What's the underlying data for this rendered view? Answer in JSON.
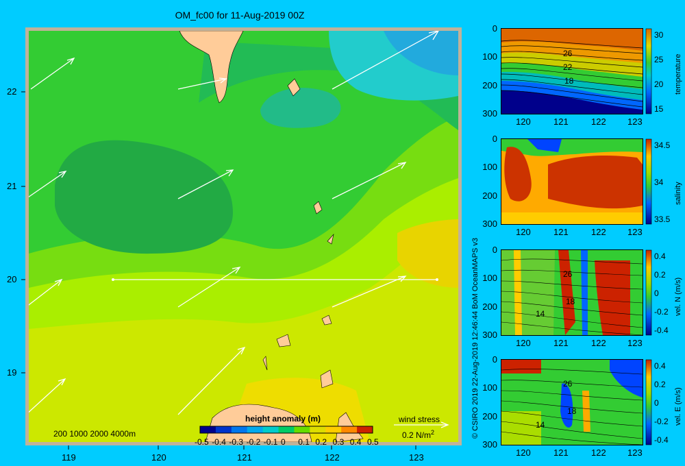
{
  "title": "OM_fc00 for 11-Aug-2019 00Z",
  "credit": "© CSIRO 2019   22-Aug-2019 12:46:44 BoM OceanMAPS v3",
  "map": {
    "x_ticks": [
      "119",
      "120",
      "121",
      "122",
      "123"
    ],
    "y_ticks": [
      "22",
      "21",
      "20",
      "19"
    ],
    "depth_legend": "200  1000  2000  4000m",
    "colorbar_title": "height anomaly (m)",
    "colorbar_ticks": [
      "-0.5",
      "-0.4",
      "-0.3",
      "-0.2",
      "-0.1",
      "0",
      "0.1",
      "0.2",
      "0.3",
      "0.4",
      "0.5"
    ],
    "colorbar_colors": [
      "#00008b",
      "#0033cc",
      "#0077ee",
      "#00aaee",
      "#00cccc",
      "#00cc66",
      "#66dd00",
      "#dddd00",
      "#ffcc00",
      "#ff8800",
      "#cc2200"
    ],
    "wind_stress_label": "wind stress",
    "wind_stress_unit": "0.2 N/m",
    "wind_stress_exp": "2"
  },
  "panels": [
    {
      "ylabel": "temperature",
      "y_ticks": [
        "0",
        "100",
        "200",
        "300"
      ],
      "x_ticks": [
        "120",
        "121",
        "122",
        "123"
      ],
      "cb_ticks": [
        "30",
        "25",
        "20",
        "15"
      ],
      "contour_labels": [
        "26",
        "22",
        "18"
      ]
    },
    {
      "ylabel": "salinity",
      "y_ticks": [
        "0",
        "100",
        "200",
        "300"
      ],
      "x_ticks": [
        "120",
        "121",
        "122",
        "123"
      ],
      "cb_ticks": [
        "34.5",
        "34",
        "33.5"
      ],
      "contour_labels": []
    },
    {
      "ylabel": "vel. N (m/s)",
      "y_ticks": [
        "0",
        "100",
        "200",
        "300"
      ],
      "x_ticks": [
        "120",
        "121",
        "122",
        "123"
      ],
      "cb_ticks": [
        "0.4",
        "0.2",
        "0",
        "-0.2",
        "-0.4"
      ],
      "contour_labels": [
        "26",
        "18",
        "14"
      ]
    },
    {
      "ylabel": "vel. E (m/s)",
      "y_ticks": [
        "0",
        "100",
        "200",
        "300"
      ],
      "x_ticks": [
        "120",
        "121",
        "122",
        "123"
      ],
      "cb_ticks": [
        "0.4",
        "0.2",
        "0",
        "-0.2",
        "-0.4"
      ],
      "contour_labels": [
        "26",
        "18",
        "14"
      ]
    }
  ],
  "chart_data": [
    {
      "type": "heatmap",
      "title": "OM_fc00 for 11-Aug-2019 00Z",
      "variable": "height anomaly (m)",
      "xlim": [
        118.5,
        123.5
      ],
      "ylim": [
        18.3,
        22.7
      ],
      "clim": [
        -0.5,
        0.5
      ],
      "notes": "sea surface height anomaly with wind stress vectors; section line along 20N from 119.5 to 123.2"
    },
    {
      "type": "heatmap",
      "variable": "temperature",
      "xlim": [
        119.5,
        123.2
      ],
      "ylim": [
        300,
        0
      ],
      "clim": [
        15,
        31
      ]
    },
    {
      "type": "heatmap",
      "variable": "salinity",
      "xlim": [
        119.5,
        123.2
      ],
      "ylim": [
        300,
        0
      ],
      "clim": [
        33.4,
        34.9
      ]
    },
    {
      "type": "heatmap",
      "variable": "vel. N (m/s)",
      "xlim": [
        119.5,
        123.2
      ],
      "ylim": [
        300,
        0
      ],
      "clim": [
        -0.4,
        0.45
      ]
    },
    {
      "type": "heatmap",
      "variable": "vel. E (m/s)",
      "xlim": [
        119.5,
        123.2
      ],
      "ylim": [
        300,
        0
      ],
      "clim": [
        -0.4,
        0.45
      ]
    }
  ]
}
